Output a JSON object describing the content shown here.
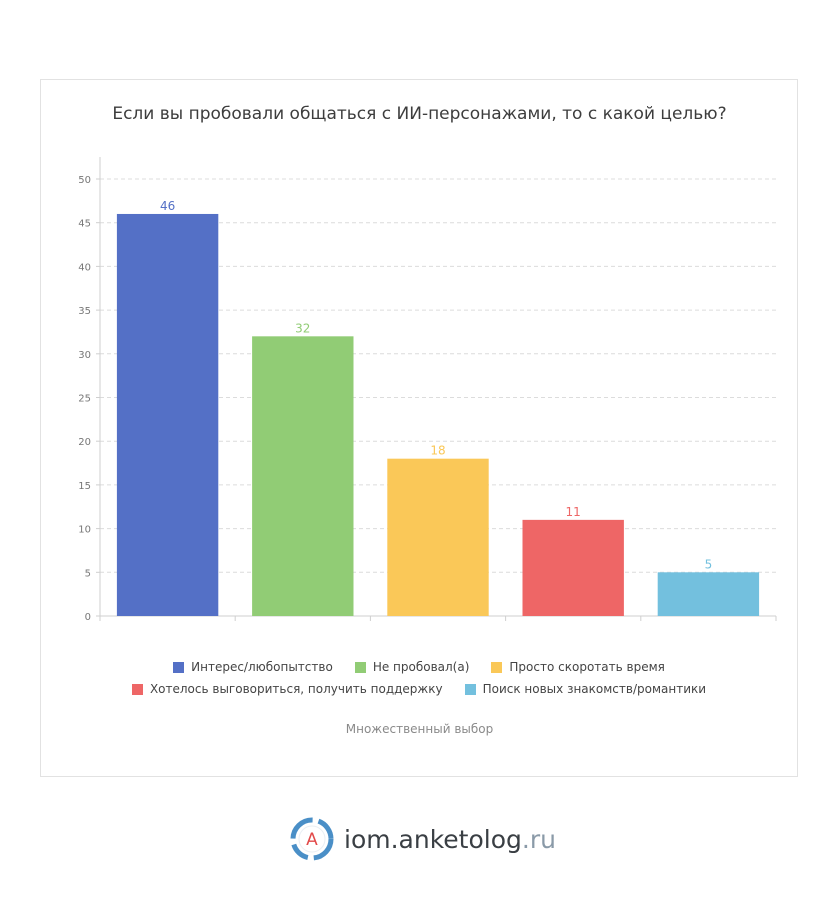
{
  "chart_data": {
    "type": "bar",
    "title": "Если вы пробовали общаться с ИИ-персонажами, то с какой целью?",
    "categories": [
      "Интерес/любопытство",
      "Не пробовал(а)",
      "Просто скоротать время",
      "Хотелось выговориться, получить поддержку",
      "Поиск новых знакомств/романтики"
    ],
    "values": [
      46,
      32,
      18,
      11,
      5
    ],
    "colors": [
      "#5470c6",
      "#91cc75",
      "#fac858",
      "#ee6666",
      "#73c0de"
    ],
    "ylim": [
      0,
      50
    ],
    "yticks": [
      "0",
      "5",
      "10",
      "15",
      "20",
      "25",
      "30",
      "35",
      "40",
      "45",
      "50"
    ],
    "grid": true,
    "legend_position": "bottom"
  },
  "footnote": "Множественный выбор",
  "brand": {
    "name": "iom.anketolog",
    "tld": ".ru",
    "logo_letter": "А",
    "logo_icon": "anketolog-logo-icon"
  }
}
